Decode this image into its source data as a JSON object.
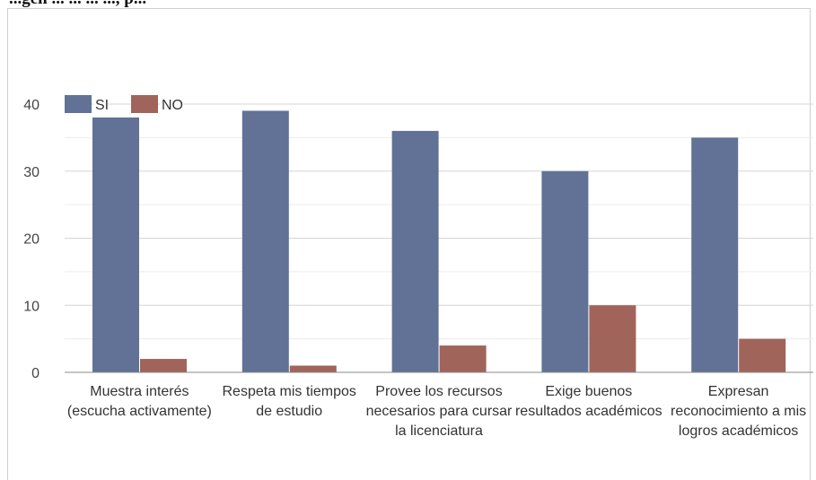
{
  "header_fragment": "...gen ... ... ... ..., p...",
  "colors": {
    "si": "#617296",
    "no": "#a0645b",
    "grid": "#dcdcdc",
    "axis": "#888888"
  },
  "chart_data": {
    "type": "bar",
    "categories": [
      [
        "Muestra interés",
        "(escucha activamente)"
      ],
      [
        "Respeta mis tiempos",
        "de estudio"
      ],
      [
        "Provee los recursos",
        "necesarios para cursar",
        "la licenciatura"
      ],
      [
        "Exige buenos",
        "resultados académicos"
      ],
      [
        "Expresan",
        "reconocimiento a mis",
        "logros académicos"
      ]
    ],
    "series": [
      {
        "name": "SI",
        "values": [
          38,
          39,
          36,
          30,
          35
        ]
      },
      {
        "name": "NO",
        "values": [
          2,
          1,
          4,
          10,
          5
        ]
      }
    ],
    "ylim": [
      0,
      40
    ],
    "yticks": [
      0,
      10,
      20,
      30,
      40
    ],
    "grid": true,
    "legend": "top-left"
  }
}
